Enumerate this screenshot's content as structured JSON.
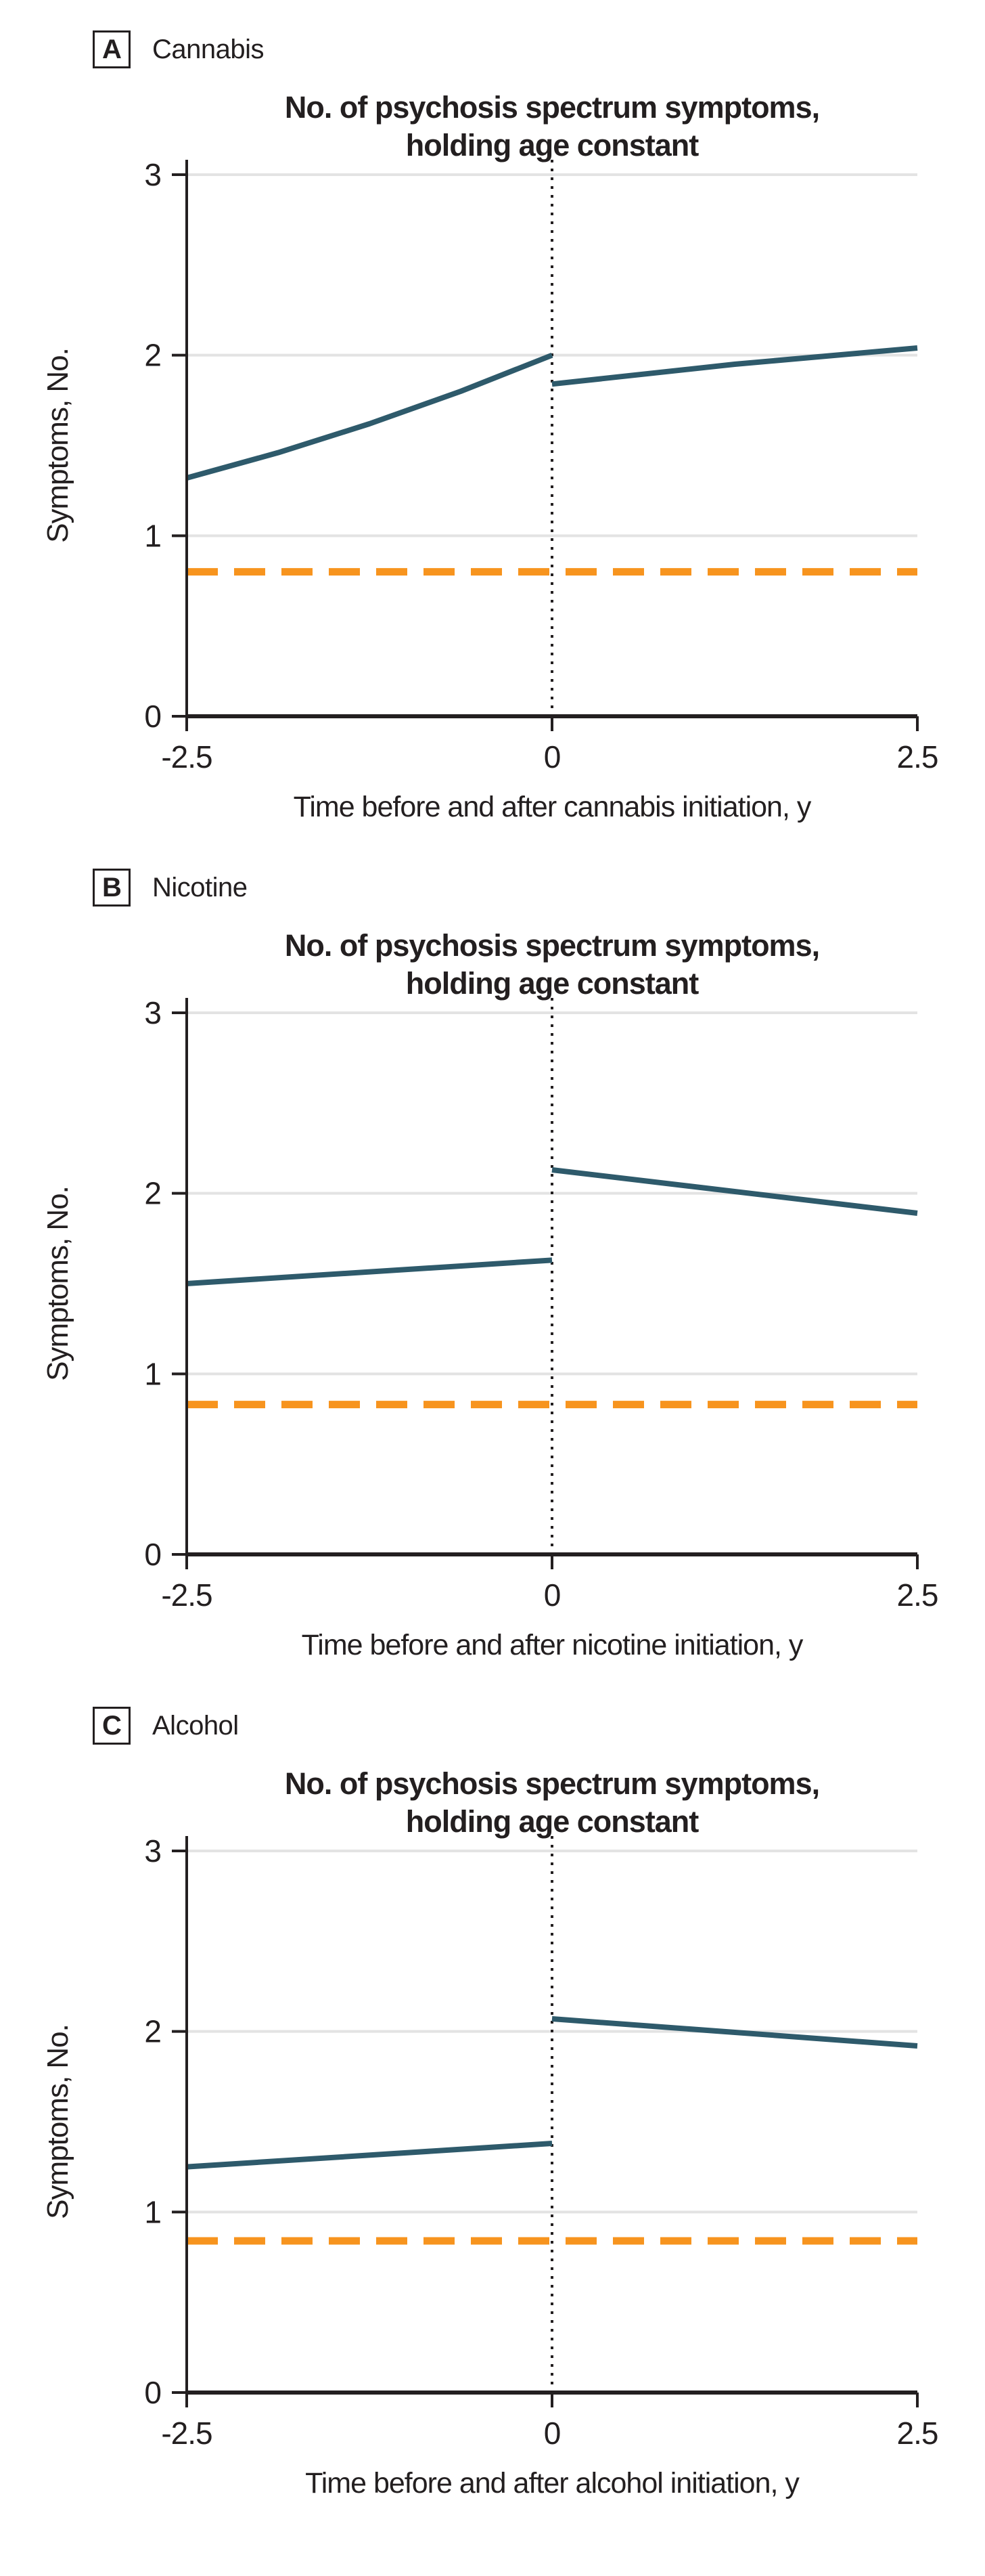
{
  "figure": {
    "background": "#FFFFFF"
  },
  "colors": {
    "line": "#2E5A6B",
    "reference": "#F7941E",
    "grid": "#E3E3E3",
    "axis": "#231F20",
    "vline": "#231F20",
    "text": "#231F20"
  },
  "chart_data": [
    {
      "type": "line",
      "panel_label": "A",
      "panel_name": "Cannabis",
      "title_lines": [
        "No. of psychosis spectrum symptoms,",
        "holding age constant"
      ],
      "xlabel": "Time before and after cannabis initiation, y",
      "ylabel": "Symptoms, No.",
      "xlim": [
        -2.5,
        2.5
      ],
      "ylim": [
        0,
        3
      ],
      "xticks": [
        -2.5,
        0,
        2.5
      ],
      "yticks": [
        0,
        1,
        2,
        3
      ],
      "gridlines_y": [
        1,
        2,
        3
      ],
      "initiation_vline_x": 0,
      "reference_line_y": 0.8,
      "legend": "none",
      "series": [
        {
          "name": "before-initiation",
          "x": [
            -2.5,
            -1.875,
            -1.25,
            -0.625,
            0
          ],
          "y": [
            1.32,
            1.46,
            1.62,
            1.8,
            2.0
          ]
        },
        {
          "name": "after-initiation",
          "x": [
            0,
            1.25,
            2.5
          ],
          "y": [
            1.84,
            1.95,
            2.04
          ]
        }
      ]
    },
    {
      "type": "line",
      "panel_label": "B",
      "panel_name": "Nicotine",
      "title_lines": [
        "No. of psychosis spectrum symptoms,",
        "holding age constant"
      ],
      "xlabel": "Time before and after nicotine initiation, y",
      "ylabel": "Symptoms, No.",
      "xlim": [
        -2.5,
        2.5
      ],
      "ylim": [
        0,
        3
      ],
      "xticks": [
        -2.5,
        0,
        2.5
      ],
      "yticks": [
        0,
        1,
        2,
        3
      ],
      "gridlines_y": [
        1,
        2,
        3
      ],
      "initiation_vline_x": 0,
      "reference_line_y": 0.83,
      "legend": "none",
      "series": [
        {
          "name": "before-initiation",
          "x": [
            -2.5,
            0
          ],
          "y": [
            1.5,
            1.63
          ]
        },
        {
          "name": "after-initiation",
          "x": [
            0,
            2.5
          ],
          "y": [
            2.13,
            1.89
          ]
        }
      ]
    },
    {
      "type": "line",
      "panel_label": "C",
      "panel_name": "Alcohol",
      "title_lines": [
        "No. of psychosis spectrum symptoms,",
        "holding age constant"
      ],
      "xlabel": "Time before and after alcohol initiation, y",
      "ylabel": "Symptoms, No.",
      "xlim": [
        -2.5,
        2.5
      ],
      "ylim": [
        0,
        3
      ],
      "xticks": [
        -2.5,
        0,
        2.5
      ],
      "yticks": [
        0,
        1,
        2,
        3
      ],
      "gridlines_y": [
        1,
        2,
        3
      ],
      "initiation_vline_x": 0,
      "reference_line_y": 0.84,
      "legend": "none",
      "series": [
        {
          "name": "before-initiation",
          "x": [
            -2.5,
            0
          ],
          "y": [
            1.25,
            1.38
          ]
        },
        {
          "name": "after-initiation",
          "x": [
            0,
            2.5
          ],
          "y": [
            2.07,
            1.92
          ]
        }
      ]
    }
  ]
}
